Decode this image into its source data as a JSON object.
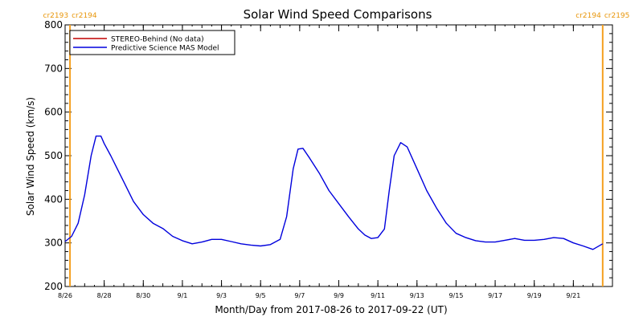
{
  "chart_data": {
    "type": "line",
    "title": "Solar Wind Speed Comparisons",
    "xlabel": "Month/Day from 2017-08-26 to 2017-09-22 (UT)",
    "ylabel": "Solar Wind Speed (km/s)",
    "xlim": [
      "2017-08-26",
      "2017-09-23"
    ],
    "ylim": [
      200,
      800
    ],
    "x_ticks": [
      {
        "date": "2017-08-26",
        "label": "8/26"
      },
      {
        "date": "2017-08-28",
        "label": "8/28"
      },
      {
        "date": "2017-08-30",
        "label": "8/30"
      },
      {
        "date": "2017-09-01",
        "label": "9/1"
      },
      {
        "date": "2017-09-03",
        "label": "9/3"
      },
      {
        "date": "2017-09-05",
        "label": "9/5"
      },
      {
        "date": "2017-09-07",
        "label": "9/7"
      },
      {
        "date": "2017-09-09",
        "label": "9/9"
      },
      {
        "date": "2017-09-11",
        "label": "9/11"
      },
      {
        "date": "2017-09-13",
        "label": "9/13"
      },
      {
        "date": "2017-09-15",
        "label": "9/15"
      },
      {
        "date": "2017-09-17",
        "label": "9/17"
      },
      {
        "date": "2017-09-19",
        "label": "9/19"
      },
      {
        "date": "2017-09-21",
        "label": "9/21"
      }
    ],
    "y_ticks": [
      200,
      300,
      400,
      500,
      600,
      700,
      800
    ],
    "grid": false,
    "legend": {
      "placement": "top-left",
      "entries": [
        {
          "name": "STEREO-Behind (No data)",
          "color": "#c00000"
        },
        {
          "name": "Predictive Science MAS Model",
          "color": "#0000dd"
        }
      ]
    },
    "carrington_markers": [
      {
        "date": "2017-08-26T06:00",
        "label_left": "cr2193",
        "label_right": "cr2194"
      },
      {
        "date": "2017-09-22T12:00",
        "label_left": "cr2194",
        "label_right": "cr2195"
      }
    ],
    "marker_color": "#f5a020",
    "series": [
      {
        "name": "Predictive Science MAS Model",
        "color": "#0000dd",
        "x": [
          "2017-08-26T00:00",
          "2017-08-26T08:00",
          "2017-08-26T16:00",
          "2017-08-27T00:00",
          "2017-08-27T08:00",
          "2017-08-27T14:00",
          "2017-08-27T20:00",
          "2017-08-28T00:00",
          "2017-08-28T08:00",
          "2017-08-28T16:00",
          "2017-08-29T00:00",
          "2017-08-29T12:00",
          "2017-08-30T00:00",
          "2017-08-30T12:00",
          "2017-08-31T00:00",
          "2017-08-31T12:00",
          "2017-09-01T00:00",
          "2017-09-01T12:00",
          "2017-09-02T00:00",
          "2017-09-02T12:00",
          "2017-09-03T00:00",
          "2017-09-03T12:00",
          "2017-09-04T00:00",
          "2017-09-04T12:00",
          "2017-09-05T00:00",
          "2017-09-05T12:00",
          "2017-09-06T00:00",
          "2017-09-06T08:00",
          "2017-09-06T16:00",
          "2017-09-06T22:00",
          "2017-09-07T04:00",
          "2017-09-07T12:00",
          "2017-09-08T00:00",
          "2017-09-08T12:00",
          "2017-09-09T00:00",
          "2017-09-09T12:00",
          "2017-09-10T00:00",
          "2017-09-10T08:00",
          "2017-09-10T16:00",
          "2017-09-11T00:00",
          "2017-09-11T08:00",
          "2017-09-11T14:00",
          "2017-09-11T20:00",
          "2017-09-12T04:00",
          "2017-09-12T12:00",
          "2017-09-13T00:00",
          "2017-09-13T12:00",
          "2017-09-14T00:00",
          "2017-09-14T12:00",
          "2017-09-15T00:00",
          "2017-09-15T12:00",
          "2017-09-16T00:00",
          "2017-09-16T12:00",
          "2017-09-17T00:00",
          "2017-09-17T12:00",
          "2017-09-18T00:00",
          "2017-09-18T12:00",
          "2017-09-19T00:00",
          "2017-09-19T12:00",
          "2017-09-20T00:00",
          "2017-09-20T12:00",
          "2017-09-21T00:00",
          "2017-09-21T12:00",
          "2017-09-22T00:00",
          "2017-09-22T12:00"
        ],
        "values": [
          303,
          315,
          345,
          410,
          500,
          545,
          545,
          528,
          500,
          470,
          440,
          395,
          365,
          345,
          333,
          315,
          305,
          298,
          302,
          308,
          308,
          303,
          298,
          295,
          293,
          296,
          308,
          360,
          470,
          515,
          517,
          495,
          460,
          420,
          390,
          360,
          332,
          318,
          310,
          312,
          332,
          420,
          500,
          530,
          520,
          470,
          420,
          380,
          345,
          322,
          312,
          305,
          302,
          302,
          306,
          310,
          306,
          306,
          308,
          312,
          310,
          300,
          293,
          285,
          298
        ]
      }
    ]
  }
}
